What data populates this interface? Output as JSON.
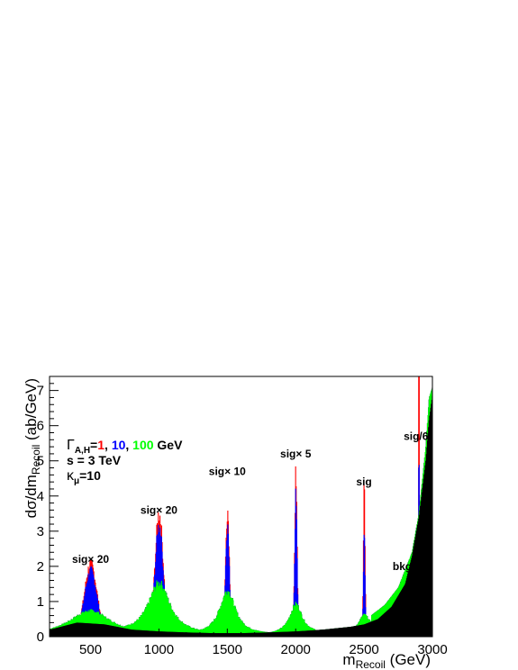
{
  "chart_data": {
    "type": "area",
    "xlabel": "m",
    "xlabel_sub": "Recoil",
    "xlabel_unit": " (GeV)",
    "ylabel": "dσ/dm",
    "ylabel_sub": "Recoil",
    "ylabel_unit": " (ab/GeV)",
    "xlim": [
      200,
      3000
    ],
    "ylim": [
      0,
      7.4
    ],
    "x_ticks": [
      500,
      1000,
      1500,
      2000,
      2500,
      3000
    ],
    "y_ticks": [
      0,
      1,
      2,
      3,
      4,
      5,
      6,
      7
    ],
    "grid": false,
    "legend": {
      "position": "top-left",
      "gamma_symbol": "Γ",
      "gamma_sub": "A,H",
      "equals": "=",
      "widths": [
        {
          "label": "1",
          "color": "#ff0000"
        },
        {
          "label": "10",
          "color": "#0000ff"
        },
        {
          "label": "100",
          "color": "#00ff00"
        }
      ],
      "separator": ", ",
      "unit": " GeV",
      "energy_line": "s = 3 TeV",
      "kappa_symbol": "κ",
      "kappa_sub": "μ",
      "kappa_value": "=10"
    },
    "annotations": [
      {
        "text": "sig× 20",
        "x": 500,
        "y": 2.1
      },
      {
        "text": "sig× 20",
        "x": 1000,
        "y": 3.5
      },
      {
        "text": "sig× 10",
        "x": 1500,
        "y": 4.6
      },
      {
        "text": "sig× 5",
        "x": 2000,
        "y": 5.1
      },
      {
        "text": "sig",
        "x": 2500,
        "y": 4.3
      },
      {
        "text": "sig/6",
        "x": 2880,
        "y": 5.6
      },
      {
        "text": "bkg",
        "x": 2780,
        "y": 1.9
      }
    ],
    "peaks": [
      {
        "mass": 500,
        "peak_width1": 1.95,
        "peak_width10": 1.75,
        "peak_width100": 0.55,
        "core_width": 45,
        "broad_width": 160
      },
      {
        "mass": 1000,
        "peak_width1": 3.45,
        "peak_width10": 3.1,
        "peak_width100": 1.45,
        "core_width": 30,
        "broad_width": 95
      },
      {
        "mass": 1500,
        "peak_width1": 3.6,
        "peak_width10": 3.2,
        "peak_width100": 1.25,
        "core_width": 14,
        "broad_width": 70
      },
      {
        "mass": 2000,
        "peak_width1": 4.55,
        "peak_width10": 3.95,
        "peak_width100": 0.85,
        "core_width": 9,
        "broad_width": 55
      },
      {
        "mass": 2500,
        "peak_width1": 4.15,
        "peak_width10": 2.75,
        "peak_width100": 0.45,
        "core_width": 6,
        "broad_width": 45
      },
      {
        "mass": 2900,
        "peak_width1": 7.4,
        "peak_width10": 4.2,
        "peak_width100": 0.0,
        "core_width": 4,
        "broad_width": 30
      }
    ],
    "series": [
      {
        "name": "Γ=1 GeV",
        "color": "#ff0000"
      },
      {
        "name": "Γ=10 GeV",
        "color": "#0000ff"
      },
      {
        "name": "Γ=100 GeV",
        "color": "#00ff00"
      },
      {
        "name": "bkg",
        "color": "#000000"
      }
    ],
    "background": {
      "x": [
        200,
        400,
        600,
        800,
        1000,
        1200,
        1400,
        1600,
        1800,
        2000,
        2200,
        2400,
        2500,
        2600,
        2700,
        2800,
        2850,
        2900,
        2950,
        2975,
        3000
      ],
      "values": [
        0.2,
        0.4,
        0.35,
        0.2,
        0.15,
        0.12,
        0.1,
        0.1,
        0.12,
        0.15,
        0.2,
        0.28,
        0.35,
        0.5,
        0.85,
        1.5,
        2.3,
        3.4,
        5.0,
        6.2,
        6.9
      ]
    },
    "green_tail": {
      "x": [
        2550,
        2650,
        2750,
        2850,
        2900,
        2950,
        2975,
        3000
      ],
      "values": [
        0.6,
        0.9,
        1.4,
        2.4,
        3.5,
        5.4,
        6.8,
        7.1
      ]
    }
  }
}
